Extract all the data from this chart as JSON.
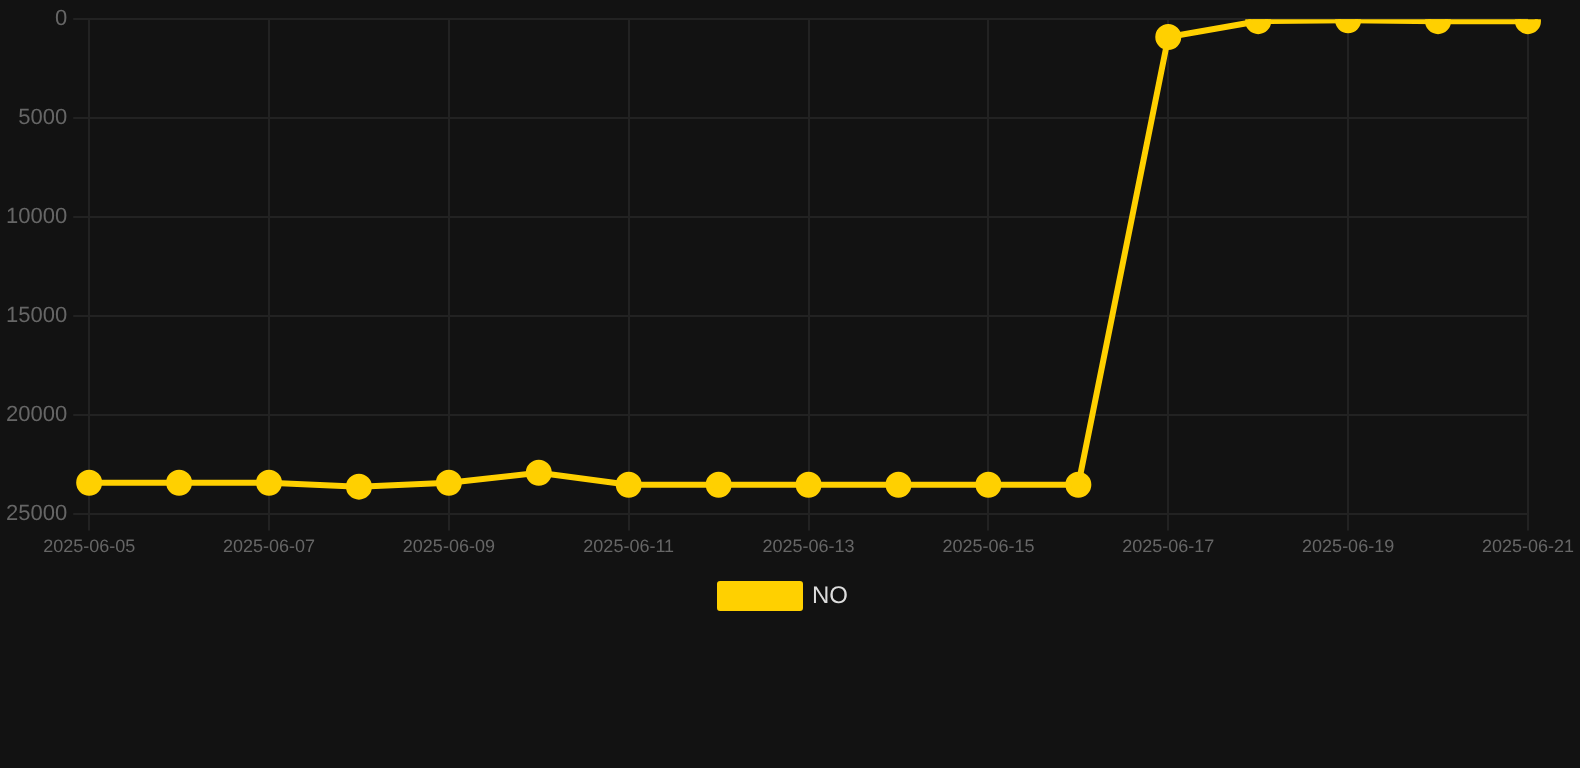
{
  "chart_data": {
    "type": "line",
    "categories": [
      "2025-06-05",
      null,
      "2025-06-07",
      null,
      "2025-06-09",
      null,
      "2025-06-11",
      null,
      "2025-06-13",
      null,
      "2025-06-15",
      null,
      "2025-06-17",
      null,
      "2025-06-19",
      null,
      "2025-06-21"
    ],
    "series": [
      {
        "name": "NO",
        "color": "#ffd000",
        "values": [
          23400,
          23400,
          23400,
          23600,
          23400,
          22900,
          23500,
          23500,
          23500,
          23500,
          23500,
          23500,
          900,
          100,
          50,
          100,
          100
        ]
      }
    ],
    "ylim": [
      25000,
      0
    ],
    "yticks": [
      0,
      5000,
      10000,
      15000,
      20000,
      25000
    ],
    "grid": true,
    "legend": "bottom",
    "marker": "circle",
    "line_style": "solid"
  }
}
